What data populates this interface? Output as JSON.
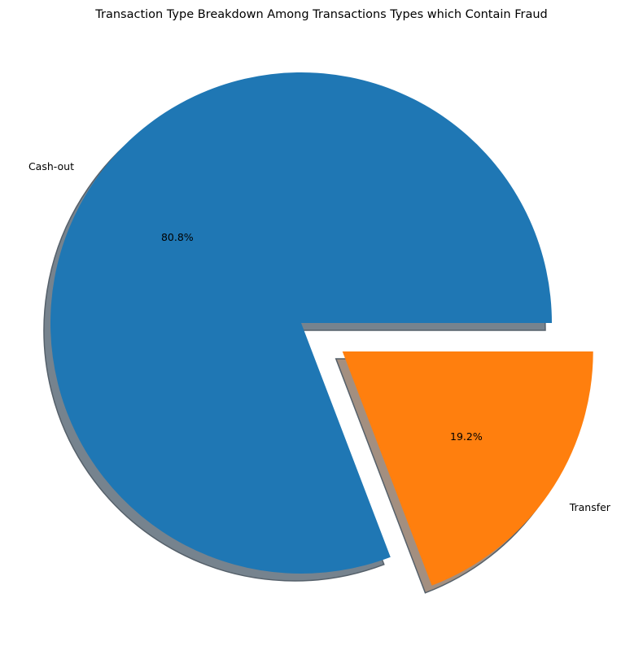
{
  "chart_data": {
    "type": "pie",
    "title": "Transaction Type Breakdown Among Transactions Types which Contain Fraud",
    "slices": [
      {
        "label": "Cash-out",
        "value": 80.8,
        "pct_label": "80.8%",
        "color": "#1f77b4",
        "shadow_color": "#76838e",
        "explode": 0
      },
      {
        "label": "Transfer",
        "value": 19.2,
        "pct_label": "19.2%",
        "color": "#ff7f0e",
        "shadow_color": "#a38f80",
        "explode": 0.2
      }
    ],
    "start_angle": 0,
    "direction": "counterclockwise",
    "shadow": true
  }
}
